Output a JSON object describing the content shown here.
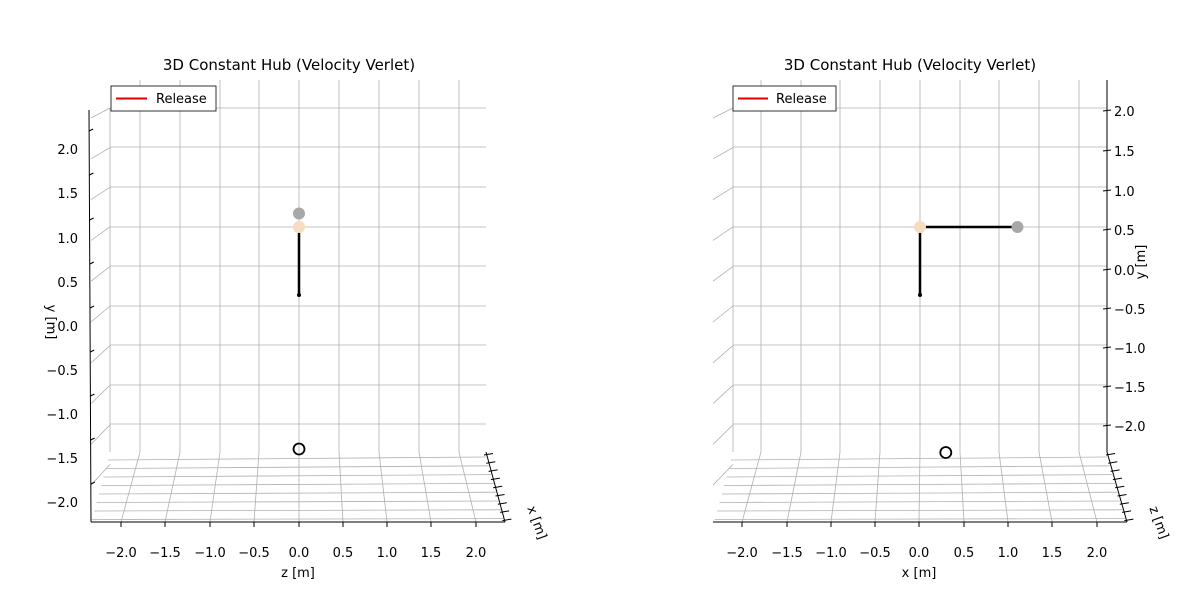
{
  "chart_data": [
    {
      "type": "line",
      "title": "3D Constant Hub (Velocity Verlet)",
      "view": "side",
      "xlabel": "z [m]",
      "ylabel": "y [m]",
      "depth_label": "x [m]",
      "x_ticks": [
        "−2.0",
        "−1.5",
        "−1.0",
        "−0.5",
        "0.0",
        "0.5",
        "1.0",
        "1.5",
        "2.0"
      ],
      "y_ticks": [
        "−2.0",
        "−1.5",
        "−1.0",
        "−0.5",
        "0.0",
        "0.5",
        "1.0",
        "1.5",
        "2.0"
      ],
      "xlim": [
        -2.3,
        2.3
      ],
      "ylim": [
        -2.3,
        2.3
      ],
      "grid": true,
      "legend": {
        "placement": "top-left",
        "entries": [
          {
            "label": "Release",
            "color": "#e00000"
          }
        ]
      },
      "points": {
        "hub": {
          "z": 0.0,
          "y": 0.35,
          "color": "#000000"
        },
        "pivot": {
          "z": 0.0,
          "y": 1.12,
          "color": "#f5dcc2"
        },
        "tip": {
          "z": 0.0,
          "y": 1.25,
          "color": "#a8a8a8"
        },
        "target": {
          "z": 0.0,
          "y": -1.38,
          "color": "#000000"
        }
      }
    },
    {
      "type": "line",
      "title": "3D Constant Hub (Velocity Verlet)",
      "view": "front",
      "xlabel": "x [m]",
      "ylabel": "y [m]",
      "depth_label": "z [m]",
      "x_ticks": [
        "−2.0",
        "−1.5",
        "−1.0",
        "−0.5",
        "0.0",
        "0.5",
        "1.0",
        "1.5",
        "2.0"
      ],
      "y_ticks": [
        "−2.0",
        "−1.5",
        "−1.0",
        "−0.5",
        "0.0",
        "0.5",
        "1.0",
        "1.5",
        "2.0"
      ],
      "xlim": [
        -2.3,
        2.3
      ],
      "ylim": [
        -2.3,
        2.3
      ],
      "grid": true,
      "legend": {
        "placement": "top-left",
        "entries": [
          {
            "label": "Release",
            "color": "#e00000"
          }
        ]
      },
      "points": {
        "hub": {
          "x": 0.0,
          "y": 0.35,
          "color": "#000000"
        },
        "pivot": {
          "x": 0.0,
          "y": 1.12,
          "color": "#f5dcc2"
        },
        "tip": {
          "x": 1.1,
          "y": 1.12,
          "color": "#a8a8a8"
        },
        "target": {
          "x": 0.28,
          "y": -1.42,
          "color": "#000000"
        }
      }
    }
  ]
}
